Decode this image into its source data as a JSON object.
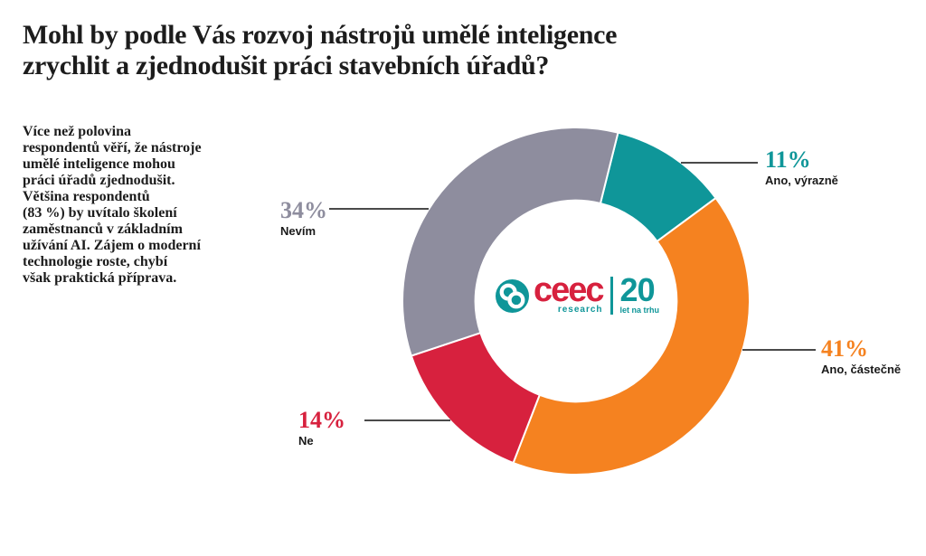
{
  "page": {
    "title": "Mohl by podle Vás rozvoj nástrojů umělé inteligence\nzrychlit a zjednodušit práci stavebních úřadů?",
    "intro": "Více než polovina\nrespondentů věří, že nástroje\numělé inteligence mohou\npráci úřadů zjednodušit.\nVětšina respondentů\n(83 %) by uvítalo školení\nzaměstnanců v základním\nužívání AI. Zájem o moderní\ntechnologie roste, chybí\nvšak praktická příprava.",
    "background": "#ffffff",
    "text_color": "#1c1c1c"
  },
  "logo": {
    "wordmark": "ceec",
    "sub_label": "research",
    "years": "20",
    "years_caption": "let na trhu",
    "red": "#d7213e",
    "teal": "#0f9699"
  },
  "chart_data": {
    "type": "pie",
    "variant": "donut",
    "title": "Mohl by podle Vás rozvoj nástrojů umělé inteligence zrychlit a zjednodušit práci stavebních úřadů?",
    "unit": "%",
    "direction": "clockwise",
    "start_angle_deg": 14,
    "inner_radius_ratio": 0.58,
    "leader_line_color": "#4a4a4a",
    "slices": [
      {
        "label": "Ano, výrazně",
        "value": 11,
        "pct_label": "11%",
        "color": "#0f9699"
      },
      {
        "label": "Ano, částečně",
        "value": 41,
        "pct_label": "41%",
        "color": "#f58220"
      },
      {
        "label": "Ne",
        "value": 14,
        "pct_label": "14%",
        "color": "#d7213e"
      },
      {
        "label": "Nevím",
        "value": 34,
        "pct_label": "34%",
        "color": "#8e8d9e"
      }
    ]
  }
}
